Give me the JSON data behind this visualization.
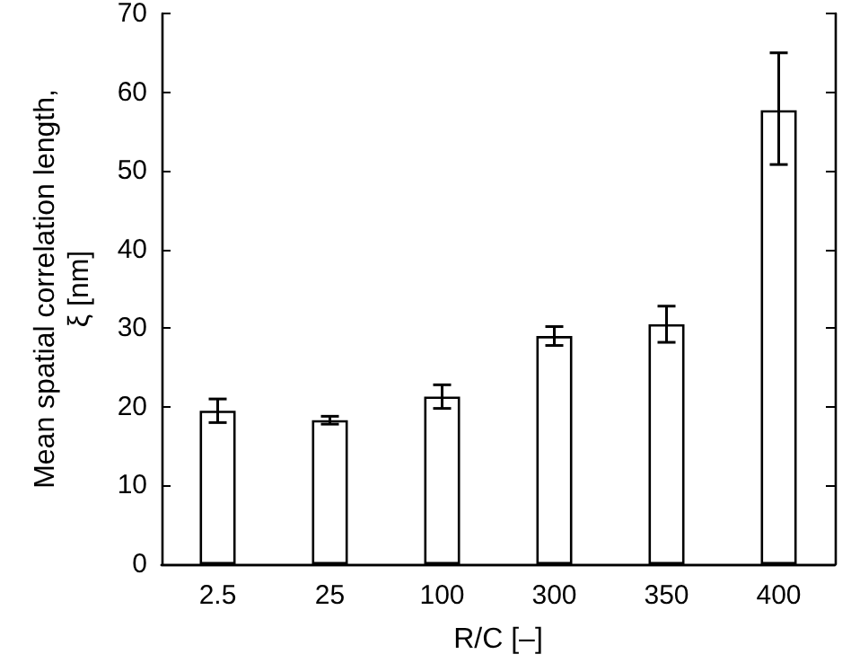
{
  "chart_data": {
    "type": "bar",
    "xlabel": "R/C [–]",
    "ylabel": "Mean spatial correlation length,\nξ [nm]",
    "categories": [
      "2.5",
      "25",
      "100",
      "300",
      "350",
      "400"
    ],
    "values": [
      19.5,
      18.3,
      21.3,
      29,
      30.5,
      57.7
    ],
    "errors": [
      1.5,
      0.5,
      1.5,
      1.2,
      2.3,
      [
        50.8,
        65
      ]
    ],
    "color": "#ffffff",
    "ylim": [
      0,
      70
    ],
    "yticks": [
      0,
      10,
      20,
      30,
      40,
      50,
      60,
      70
    ],
    "grid": false
  }
}
